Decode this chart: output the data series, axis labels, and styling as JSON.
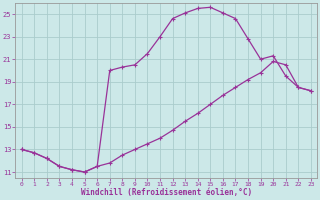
{
  "xlabel": "Windchill (Refroidissement éolien,°C)",
  "background_color": "#cce8e8",
  "grid_color": "#aacccc",
  "line_color": "#993399",
  "ylim": [
    10.5,
    26.0
  ],
  "xlim": [
    -0.5,
    23.5
  ],
  "yticks": [
    11,
    13,
    15,
    17,
    19,
    21,
    23,
    25
  ],
  "xticks": [
    0,
    1,
    2,
    3,
    4,
    5,
    6,
    7,
    8,
    9,
    10,
    11,
    12,
    13,
    14,
    15,
    16,
    17,
    18,
    19,
    20,
    21,
    22,
    23
  ],
  "upper_curve_x": [
    0,
    1,
    2,
    3,
    4,
    5,
    6,
    7,
    8,
    9,
    10,
    11,
    12,
    13,
    14,
    15,
    16,
    17,
    18,
    19,
    20,
    21,
    22,
    23
  ],
  "upper_curve_y": [
    13.0,
    12.7,
    12.2,
    11.5,
    11.2,
    11.0,
    11.5,
    20.0,
    20.3,
    20.5,
    21.5,
    23.0,
    24.6,
    25.1,
    25.5,
    25.6,
    25.1,
    24.6,
    22.8,
    21.0,
    21.3,
    19.5,
    18.5,
    18.2
  ],
  "lower_curve_x": [
    0,
    1,
    2,
    3,
    4,
    5,
    6,
    7,
    8,
    9,
    10,
    11,
    12,
    13,
    14,
    15,
    16,
    17,
    18,
    19,
    20,
    21,
    22,
    23
  ],
  "lower_curve_y": [
    13.0,
    12.7,
    12.2,
    11.5,
    11.2,
    11.0,
    11.5,
    11.8,
    12.5,
    13.0,
    13.5,
    14.0,
    14.7,
    15.5,
    16.2,
    17.0,
    17.8,
    18.5,
    19.2,
    19.8,
    20.8,
    20.5,
    18.5,
    18.2
  ]
}
